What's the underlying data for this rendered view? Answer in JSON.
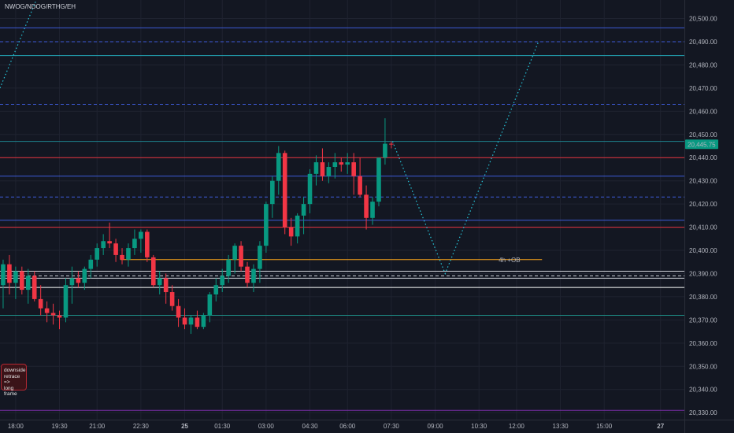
{
  "header": {
    "symbol_text": "NWOG/NDOG/RTHG/EH"
  },
  "note": {
    "lines": [
      "downside",
      "retrace =>",
      "long frame"
    ]
  },
  "chart_data": {
    "type": "candlestick",
    "ylim": [
      20327,
      20508
    ],
    "y_ticks": [
      20500,
      20490,
      20480,
      20470,
      20460,
      20450,
      20440,
      20430,
      20420,
      20410,
      20400,
      20390,
      20380,
      20370,
      20360,
      20350,
      20340,
      20330
    ],
    "y_tick_labels": [
      "20,500.00",
      "20,490.00",
      "20,480.00",
      "20,470.00",
      "20,460.00",
      "20,450.00",
      "20,440.00",
      "20,430.00",
      "20,420.00",
      "20,410.00",
      "20,400.00",
      "20,390.00",
      "20,380.00",
      "20,370.00",
      "20,360.00",
      "20,350.00",
      "20,340.00",
      "20,330.00"
    ],
    "x_ticks": [
      {
        "label": "18:00",
        "slot": 2
      },
      {
        "label": "19:30",
        "slot": 9
      },
      {
        "label": "21:00",
        "slot": 15
      },
      {
        "label": "22:30",
        "slot": 22
      },
      {
        "label": "25",
        "slot": 29,
        "bold": true
      },
      {
        "label": "01:30",
        "slot": 35
      },
      {
        "label": "03:00",
        "slot": 42
      },
      {
        "label": "04:30",
        "slot": 49
      },
      {
        "label": "06:00",
        "slot": 55
      },
      {
        "label": "07:30",
        "slot": 62
      },
      {
        "label": "09:00",
        "slot": 69
      },
      {
        "label": "10:30",
        "slot": 76
      },
      {
        "label": "12:00",
        "slot": 82
      },
      {
        "label": "13:30",
        "slot": 89
      },
      {
        "label": "15:00",
        "slot": 96
      },
      {
        "label": "27",
        "slot": 105,
        "bold": true
      }
    ],
    "last_price": {
      "value": 20445.75,
      "label": "20,445.75",
      "color": "#089981"
    },
    "colors": {
      "up": "#089981",
      "down": "#f23645"
    },
    "candles": [
      {
        "o": 20385,
        "h": 20396,
        "l": 20375,
        "c": 20394
      },
      {
        "o": 20394,
        "h": 20398,
        "l": 20381,
        "c": 20386
      },
      {
        "o": 20386,
        "h": 20393,
        "l": 20379,
        "c": 20391
      },
      {
        "o": 20391,
        "h": 20393,
        "l": 20381,
        "c": 20383
      },
      {
        "o": 20383,
        "h": 20392,
        "l": 20377,
        "c": 20389
      },
      {
        "o": 20389,
        "h": 20391,
        "l": 20378,
        "c": 20379
      },
      {
        "o": 20379,
        "h": 20385,
        "l": 20372,
        "c": 20375
      },
      {
        "o": 20375,
        "h": 20378,
        "l": 20369,
        "c": 20373
      },
      {
        "o": 20373,
        "h": 20377,
        "l": 20368,
        "c": 20372
      },
      {
        "o": 20372,
        "h": 20374,
        "l": 20366,
        "c": 20371
      },
      {
        "o": 20371,
        "h": 20388,
        "l": 20369,
        "c": 20385
      },
      {
        "o": 20385,
        "h": 20393,
        "l": 20377,
        "c": 20388
      },
      {
        "o": 20388,
        "h": 20391,
        "l": 20384,
        "c": 20386
      },
      {
        "o": 20386,
        "h": 20393,
        "l": 20383,
        "c": 20392
      },
      {
        "o": 20392,
        "h": 20398,
        "l": 20388,
        "c": 20396
      },
      {
        "o": 20396,
        "h": 20403,
        "l": 20393,
        "c": 20401
      },
      {
        "o": 20401,
        "h": 20407,
        "l": 20398,
        "c": 20404
      },
      {
        "o": 20404,
        "h": 20412,
        "l": 20401,
        "c": 20403
      },
      {
        "o": 20403,
        "h": 20405,
        "l": 20395,
        "c": 20398
      },
      {
        "o": 20398,
        "h": 20401,
        "l": 20394,
        "c": 20396
      },
      {
        "o": 20396,
        "h": 20403,
        "l": 20393,
        "c": 20401
      },
      {
        "o": 20401,
        "h": 20409,
        "l": 20398,
        "c": 20405
      },
      {
        "o": 20405,
        "h": 20409,
        "l": 20399,
        "c": 20408
      },
      {
        "o": 20408,
        "h": 20409,
        "l": 20395,
        "c": 20397
      },
      {
        "o": 20397,
        "h": 20398,
        "l": 20384,
        "c": 20385
      },
      {
        "o": 20385,
        "h": 20391,
        "l": 20381,
        "c": 20388
      },
      {
        "o": 20388,
        "h": 20390,
        "l": 20377,
        "c": 20382
      },
      {
        "o": 20382,
        "h": 20385,
        "l": 20374,
        "c": 20376
      },
      {
        "o": 20376,
        "h": 20379,
        "l": 20367,
        "c": 20371
      },
      {
        "o": 20371,
        "h": 20375,
        "l": 20366,
        "c": 20368
      },
      {
        "o": 20368,
        "h": 20372,
        "l": 20364,
        "c": 20371
      },
      {
        "o": 20371,
        "h": 20374,
        "l": 20366,
        "c": 20367
      },
      {
        "o": 20367,
        "h": 20373,
        "l": 20366,
        "c": 20372
      },
      {
        "o": 20372,
        "h": 20382,
        "l": 20369,
        "c": 20381
      },
      {
        "o": 20381,
        "h": 20388,
        "l": 20378,
        "c": 20385
      },
      {
        "o": 20385,
        "h": 20392,
        "l": 20382,
        "c": 20389
      },
      {
        "o": 20389,
        "h": 20398,
        "l": 20386,
        "c": 20396
      },
      {
        "o": 20396,
        "h": 20403,
        "l": 20390,
        "c": 20402
      },
      {
        "o": 20402,
        "h": 20404,
        "l": 20391,
        "c": 20393
      },
      {
        "o": 20393,
        "h": 20395,
        "l": 20384,
        "c": 20386
      },
      {
        "o": 20386,
        "h": 20394,
        "l": 20382,
        "c": 20392
      },
      {
        "o": 20392,
        "h": 20404,
        "l": 20386,
        "c": 20402
      },
      {
        "o": 20402,
        "h": 20421,
        "l": 20399,
        "c": 20420
      },
      {
        "o": 20420,
        "h": 20432,
        "l": 20414,
        "c": 20430
      },
      {
        "o": 20430,
        "h": 20445,
        "l": 20424,
        "c": 20442
      },
      {
        "o": 20442,
        "h": 20443,
        "l": 20407,
        "c": 20410
      },
      {
        "o": 20410,
        "h": 20414,
        "l": 20402,
        "c": 20406
      },
      {
        "o": 20406,
        "h": 20416,
        "l": 20403,
        "c": 20415
      },
      {
        "o": 20415,
        "h": 20423,
        "l": 20407,
        "c": 20420
      },
      {
        "o": 20420,
        "h": 20435,
        "l": 20416,
        "c": 20433
      },
      {
        "o": 20433,
        "h": 20441,
        "l": 20428,
        "c": 20438
      },
      {
        "o": 20438,
        "h": 20444,
        "l": 20430,
        "c": 20432
      },
      {
        "o": 20432,
        "h": 20438,
        "l": 20429,
        "c": 20436
      },
      {
        "o": 20436,
        "h": 20442,
        "l": 20431,
        "c": 20438
      },
      {
        "o": 20438,
        "h": 20440,
        "l": 20434,
        "c": 20437
      },
      {
        "o": 20437,
        "h": 20442,
        "l": 20433,
        "c": 20438
      },
      {
        "o": 20438,
        "h": 20442,
        "l": 20424,
        "c": 20432
      },
      {
        "o": 20432,
        "h": 20440,
        "l": 20423,
        "c": 20424
      },
      {
        "o": 20424,
        "h": 20428,
        "l": 20409,
        "c": 20414
      },
      {
        "o": 20414,
        "h": 20423,
        "l": 20411,
        "c": 20421
      },
      {
        "o": 20421,
        "h": 20440,
        "l": 20419,
        "c": 20440
      },
      {
        "o": 20440,
        "h": 20457,
        "l": 20437,
        "c": 20446
      },
      {
        "o": 20446,
        "h": 20447,
        "l": 20444,
        "c": 20445.75
      }
    ],
    "horizontal_lines": [
      {
        "y": 20496,
        "color": "#3d5ad6",
        "style": "solid",
        "x_start": 0
      },
      {
        "y": 20490,
        "color": "#3d5ad6",
        "style": "dashed",
        "x_start": 0
      },
      {
        "y": 20484,
        "color": "#22a3b3",
        "style": "solid",
        "x_start": 0
      },
      {
        "y": 20463,
        "color": "#3d5ad6",
        "style": "dashed",
        "x_start": 0
      },
      {
        "y": 20447,
        "color": "#1e7f8c",
        "style": "solid",
        "x_start": 0
      },
      {
        "y": 20440,
        "color": "#e5333f",
        "style": "solid",
        "x_start": 0
      },
      {
        "y": 20432,
        "color": "#3d5ad6",
        "style": "solid",
        "x_start": 0
      },
      {
        "y": 20423,
        "color": "#3d5ad6",
        "style": "dashed",
        "x_start": 0
      },
      {
        "y": 20413,
        "color": "#3d5ad6",
        "style": "solid",
        "x_start": 0
      },
      {
        "y": 20410,
        "color": "#e5333f",
        "style": "solid",
        "x_start": 0
      },
      {
        "y": 20396,
        "color": "#f7a21b",
        "style": "solid",
        "x_start": 0.176,
        "x_end": 0.792
      },
      {
        "y": 20391,
        "color": "#d0d3da",
        "style": "solid",
        "x_start": 0
      },
      {
        "y": 20389,
        "color": "#d0d3da",
        "style": "dashed",
        "x_start": 0
      },
      {
        "y": 20388,
        "color": "#d0d3da",
        "style": "solid",
        "x_start": 0
      },
      {
        "y": 20384,
        "color": "#ffffff",
        "style": "solid",
        "x_start": 0
      },
      {
        "y": 20372,
        "color": "#1e8f87",
        "style": "solid",
        "x_start": 0
      },
      {
        "y": 20331,
        "color": "#7b2ea8",
        "style": "solid",
        "x_start": 0
      }
    ],
    "annotations": [
      {
        "text": "4h +OB",
        "y": 20396
      }
    ],
    "projection_points": [
      {
        "slot": 62.2,
        "y": 20447
      },
      {
        "slot": 70.6,
        "y": 20390
      },
      {
        "slot": 85.5,
        "y": 20490
      }
    ],
    "projection_color": "#26c6da"
  }
}
